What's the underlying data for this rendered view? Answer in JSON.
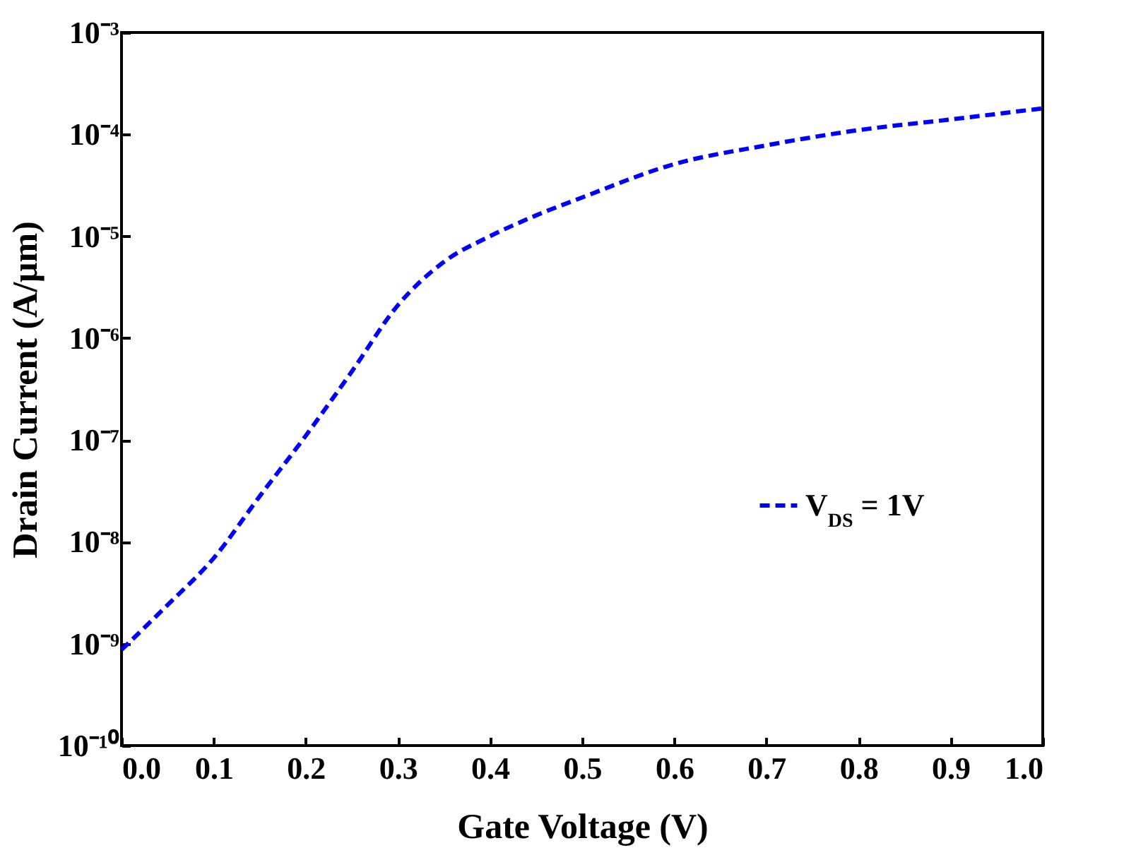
{
  "chart_data": {
    "type": "line",
    "xlabel": "Gate Voltage (V)",
    "ylabel": "Drain Current (A/μm)",
    "x": [
      0,
      0.05,
      0.1,
      0.15,
      0.2,
      0.25,
      0.3,
      0.35,
      0.4,
      0.45,
      0.5,
      0.6,
      0.7,
      0.8,
      0.9,
      1.0
    ],
    "series": [
      {
        "name": "V$_{DS}$ = 1V",
        "color": "#0000ff",
        "values": [
          8.7e-10,
          2.4e-09,
          6.9e-09,
          2.8e-08,
          1.1e-07,
          4.7e-07,
          2.1e-06,
          5.6e-06,
          1e-05,
          1.6e-05,
          2.4e-05,
          5.1e-05,
          7.8e-05,
          0.00011,
          0.00014,
          0.00018
        ]
      }
    ],
    "log": "y",
    "xlim": [
      0,
      1.0
    ],
    "xticks": [
      {
        "value": 0,
        "label": "0.0"
      },
      0.1,
      0.2,
      0.3,
      0.4,
      0.5,
      0.6,
      0.7,
      0.8,
      0.9,
      {
        "value": 1,
        "label": "1.0"
      }
    ],
    "ylim": [
      1e-10,
      0.001
    ],
    "yticks": [
      {
        "value": 1e-10,
        "label": "10⁻¹⁰"
      },
      {
        "value": 1e-09,
        "label": "10⁻⁹"
      },
      {
        "value": 1e-08,
        "label": "10⁻⁸"
      },
      {
        "value": 1e-07,
        "label": "10⁻⁷"
      },
      {
        "value": 1e-06,
        "label": "10⁻⁶"
      },
      {
        "value": 1e-05,
        "label": "10⁻⁵"
      },
      {
        "value": 0.0001,
        "label": "10⁻⁴"
      },
      {
        "value": 0.001,
        "label": "10⁻³"
      }
    ],
    "grid": false,
    "legend": "right",
    "marker": "none",
    "line_style": "dashed"
  }
}
